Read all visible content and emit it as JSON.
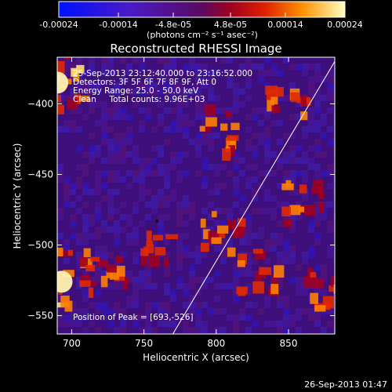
{
  "colorbar": {
    "ticks": [
      "-0.00024",
      "-0.00014",
      "-4.8e-05",
      "4.8e-05",
      "0.00014",
      "0.00024"
    ],
    "tick_values": [
      -0.00024,
      -0.00014,
      -4.8e-05,
      4.8e-05,
      0.00014,
      0.00024
    ],
    "range": [
      -0.00024,
      0.00024
    ],
    "unit_label": "(photons cm⁻² s⁻¹ asec⁻²)"
  },
  "chart_data": {
    "type": "heatmap",
    "title": "Reconstructed RHESSI Image",
    "xlabel": "Heliocentric X (arcsec)",
    "ylabel": "Heliocentric Y (arcsec)",
    "xlim": [
      690,
      882
    ],
    "ylim": [
      -563,
      -367
    ],
    "x_ticks": [
      700,
      750,
      800,
      850
    ],
    "y_ticks": [
      -400,
      -450,
      -500,
      -550
    ],
    "annotations": [
      "25-Sep-2013 23:12:40.000 to 23:16:52.000",
      "Detectors: 3F 5F 6F 7F 8F 9F, Att 0",
      "Energy Range: 25.0 - 50.0 keV",
      "Clean     Total counts: 9.96E+03"
    ],
    "peak_label": "Position of Peak = [693,-526]",
    "peak": [
      693,
      -526
    ],
    "limb_line": [
      [
        770,
        -563
      ],
      [
        882,
        -370
      ]
    ],
    "bright_sources": [
      {
        "x": 690,
        "y": -385,
        "level": 1.0
      },
      {
        "x": 693,
        "y": -526,
        "level": 1.0
      },
      {
        "x": 725,
        "y": -520,
        "level": 0.55
      },
      {
        "x": 800,
        "y": -420,
        "level": 0.55
      },
      {
        "x": 805,
        "y": -490,
        "level": 0.6
      },
      {
        "x": 830,
        "y": -520,
        "level": 0.55
      },
      {
        "x": 850,
        "y": -395,
        "level": 0.5
      },
      {
        "x": 860,
        "y": -470,
        "level": 0.5
      },
      {
        "x": 875,
        "y": -530,
        "level": 0.55
      },
      {
        "x": 760,
        "y": -500,
        "level": 0.35
      }
    ]
  },
  "footer_timestamp": "26-Sep-2013 01:47"
}
